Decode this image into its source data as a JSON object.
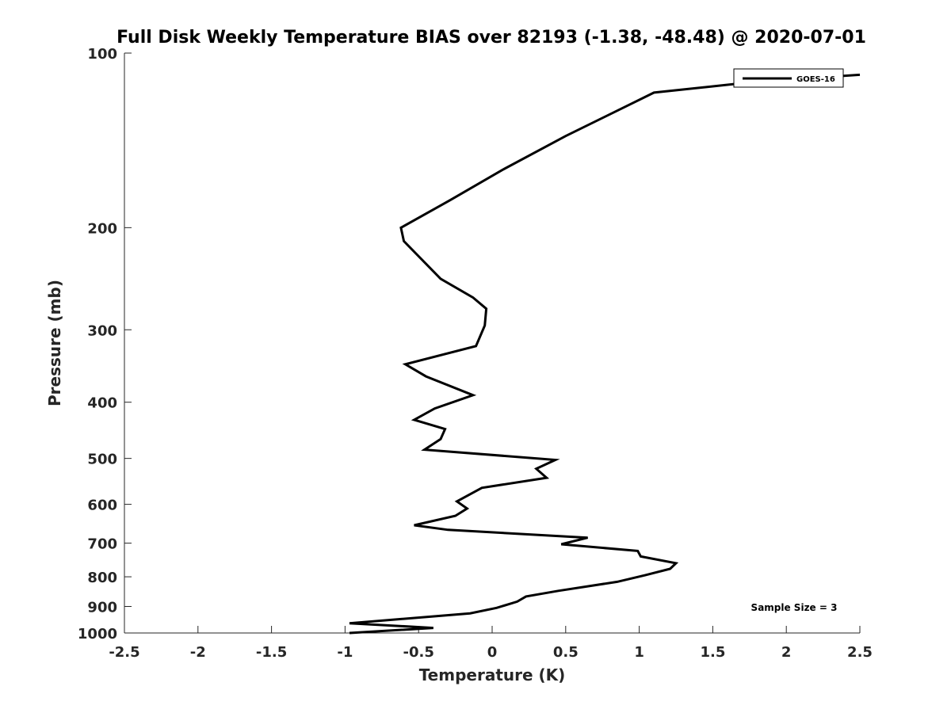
{
  "chart_data": {
    "type": "line",
    "title": "Full Disk Weekly Temperature BIAS over 82193 (-1.38, -48.48) @ 2020-07-01",
    "xlabel": "Temperature (K)",
    "ylabel": "Pressure (mb)",
    "xlim": [
      -2.5,
      2.5
    ],
    "ylim": [
      100,
      1000
    ],
    "y_scale": "log",
    "y_reversed": true,
    "xticks": [
      -2.5,
      -2,
      -1.5,
      -1,
      -0.5,
      0,
      0.5,
      1,
      1.5,
      2,
      2.5
    ],
    "xtick_labels": [
      "-2.5",
      "-2",
      "-1.5",
      "-1",
      "-0.5",
      "0",
      "0.5",
      "1",
      "1.5",
      "2",
      "2.5"
    ],
    "yticks": [
      100,
      200,
      300,
      400,
      500,
      600,
      700,
      800,
      900,
      1000
    ],
    "ytick_labels": [
      "100",
      "200",
      "300",
      "400",
      "500",
      "600",
      "700",
      "800",
      "900",
      "1000"
    ],
    "legend_position": "top-right",
    "grid": false,
    "annotation": "Sample Size = 3",
    "series": [
      {
        "name": "GOES-16",
        "color": "#000000",
        "points": [
          [
            2.5,
            109
          ],
          [
            1.8,
            112
          ],
          [
            1.1,
            117
          ],
          [
            0.5,
            139
          ],
          [
            0.07,
            159
          ],
          [
            -0.28,
            179
          ],
          [
            -0.62,
            200
          ],
          [
            -0.6,
            211
          ],
          [
            -0.35,
            245
          ],
          [
            -0.13,
            264
          ],
          [
            -0.04,
            276
          ],
          [
            -0.05,
            295
          ],
          [
            -0.11,
            320
          ],
          [
            -0.59,
            344
          ],
          [
            -0.45,
            361
          ],
          [
            -0.13,
            389
          ],
          [
            -0.39,
            410
          ],
          [
            -0.53,
            429
          ],
          [
            -0.32,
            445
          ],
          [
            -0.35,
            463
          ],
          [
            -0.46,
            483
          ],
          [
            0.43,
            503
          ],
          [
            0.3,
            521
          ],
          [
            0.37,
            540
          ],
          [
            -0.07,
            562
          ],
          [
            -0.24,
            593
          ],
          [
            -0.17,
            610
          ],
          [
            -0.25,
            628
          ],
          [
            -0.53,
            652
          ],
          [
            -0.3,
            664
          ],
          [
            0.65,
            685
          ],
          [
            0.47,
            703
          ],
          [
            0.99,
            722
          ],
          [
            1.01,
            738
          ],
          [
            1.25,
            758
          ],
          [
            1.21,
            775
          ],
          [
            1.04,
            795
          ],
          [
            0.85,
            816
          ],
          [
            0.45,
            846
          ],
          [
            0.23,
            865
          ],
          [
            0.17,
            883
          ],
          [
            0.03,
            905
          ],
          [
            -0.15,
            925
          ],
          [
            -0.97,
            962
          ],
          [
            -0.4,
            980
          ],
          [
            -0.97,
            1000
          ]
        ]
      }
    ]
  }
}
